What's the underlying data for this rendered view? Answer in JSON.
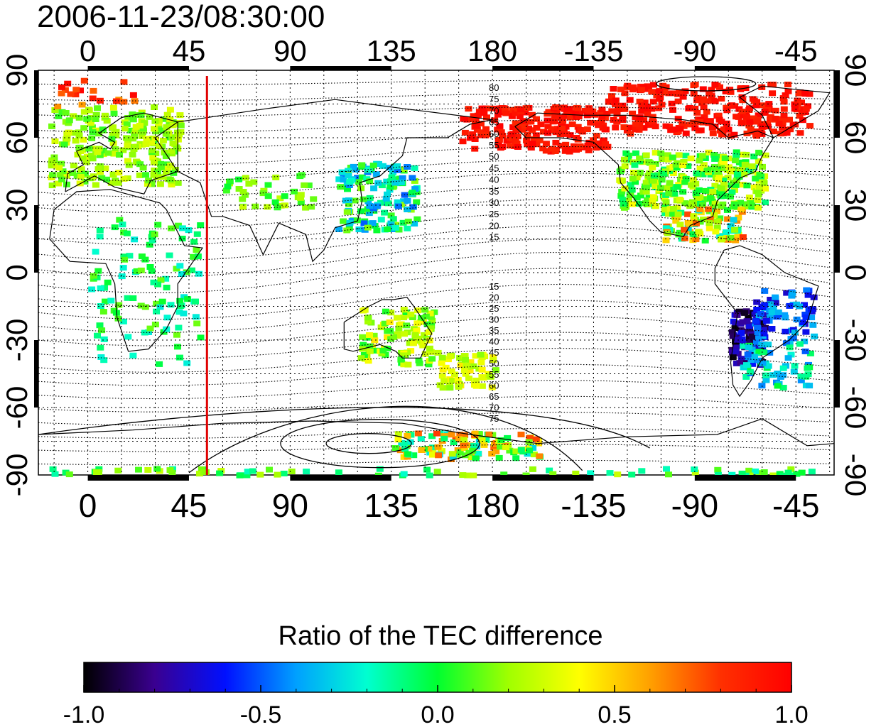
{
  "title": "2006-11-23/08:30:00",
  "map": {
    "lon_ticks": [
      "0",
      "45",
      "90",
      "135",
      "180",
      "-135",
      "-90",
      "-45"
    ],
    "lon_tick_values": [
      0,
      45,
      90,
      135,
      180,
      225,
      270,
      315
    ],
    "lon_range": [
      -22,
      332
    ],
    "lat_ticks": [
      "90",
      "60",
      "30",
      "0",
      "-30",
      "-60",
      "-90"
    ],
    "lat_tick_values": [
      90,
      60,
      30,
      0,
      -30,
      -60,
      -90
    ],
    "lat_range": [
      -90,
      90
    ],
    "marker_longitude": 53,
    "marker_color": "#e00000",
    "grid": true,
    "contour_labels_north": [
      "80",
      "75",
      "70",
      "65",
      "60",
      "55",
      "50",
      "45",
      "40",
      "35",
      "30",
      "25",
      "20",
      "15"
    ],
    "contour_labels_south": [
      "15",
      "20",
      "25",
      "30",
      "35",
      "40",
      "45",
      "50",
      "55",
      "60",
      "65",
      "70",
      "75"
    ]
  },
  "colorbar": {
    "title": "Ratio of the TEC difference",
    "ticks": [
      "-1.0",
      "-0.5",
      "0.0",
      "0.5",
      "1.0"
    ],
    "tick_values": [
      -1.0,
      -0.5,
      0.0,
      0.5,
      1.0
    ],
    "range": [
      -1.0,
      1.0
    ],
    "colormap": [
      "#000000",
      "#3a0090",
      "#0010ff",
      "#00a0ff",
      "#00ffd0",
      "#00ff30",
      "#a0ff00",
      "#ffff00",
      "#ffa000",
      "#ff3000",
      "#ff0000"
    ]
  }
}
